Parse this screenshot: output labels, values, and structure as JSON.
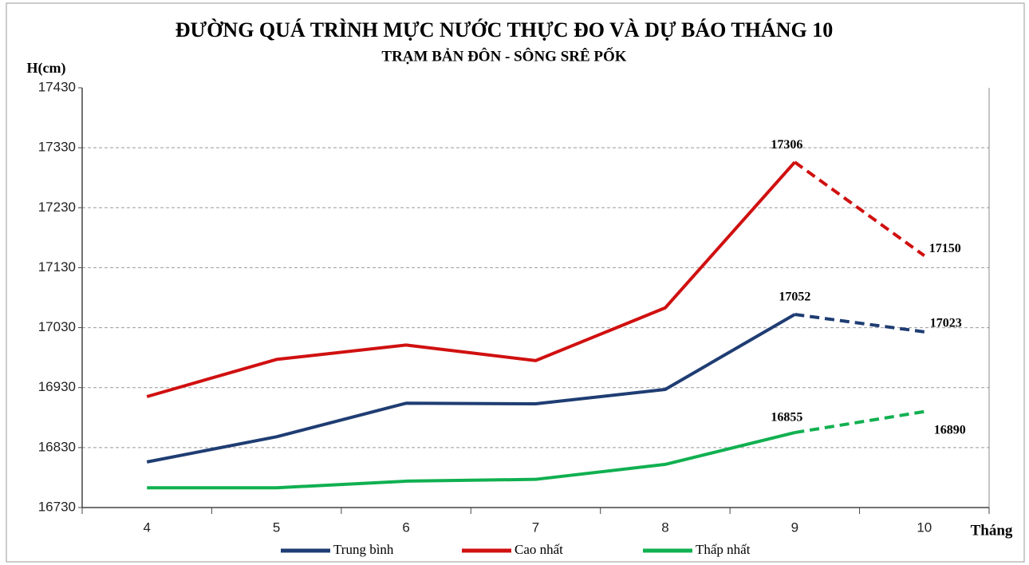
{
  "chart_data": {
    "type": "line",
    "title": "ĐƯỜNG QUÁ TRÌNH MỰC NƯỚC THỰC ĐO VÀ DỰ BÁO  THÁNG 10",
    "subtitle": "TRẠM BẢN ĐÔN - SÔNG SRÊ PỐK",
    "y_label": "H(cm)",
    "x_label": "Tháng",
    "categories": [
      "4",
      "5",
      "6",
      "7",
      "8",
      "9",
      "10"
    ],
    "series": [
      {
        "name": "Trung bình",
        "color": "#1f3d73",
        "values": [
          16806,
          16848,
          16904,
          16903,
          16927,
          17052,
          17023
        ]
      },
      {
        "name": "Cao nhất",
        "color": "#d01010",
        "values": [
          16915,
          16977,
          17001,
          16975,
          17063,
          17306,
          17150
        ]
      },
      {
        "name": "Thấp nhất",
        "color": "#10b050",
        "values": [
          16763,
          16763,
          16774,
          16777,
          16802,
          16855,
          16890
        ]
      }
    ],
    "dashed_from": 5,
    "ylim": [
      16730,
      17430
    ],
    "yticks": [
      16730,
      16830,
      16930,
      17030,
      17130,
      17230,
      17330,
      17430
    ],
    "grid": true,
    "legend": "bottom"
  }
}
